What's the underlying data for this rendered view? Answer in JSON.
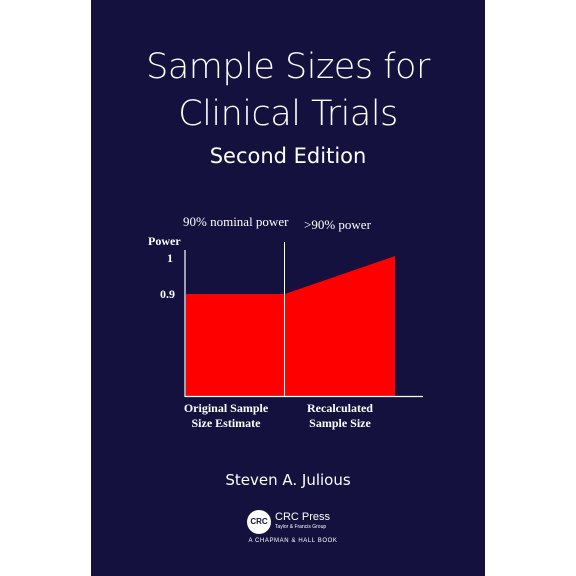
{
  "cover": {
    "title_line1": "Sample Sizes for",
    "title_line2": "Clinical Trials",
    "edition": "Second Edition",
    "author": "Steven A. Julious",
    "background_color": "#14113e",
    "accent_color": "#ff0000"
  },
  "figure": {
    "left_caption": "90% nominal power",
    "right_caption": ">90% power",
    "y_axis_title": "Power",
    "y_tick_1": "1",
    "y_tick_09": "0.9",
    "x_label_left_line1": "Original Sample",
    "x_label_left_line2": "Size Estimate",
    "x_label_right_line1": "Recalculated",
    "x_label_right_line2": "Sample Size"
  },
  "publisher": {
    "logo_text": "CRC",
    "name": "CRC Press",
    "group": "Taylor & Francis Group",
    "imprint": "A CHAPMAN & HALL BOOK"
  }
}
